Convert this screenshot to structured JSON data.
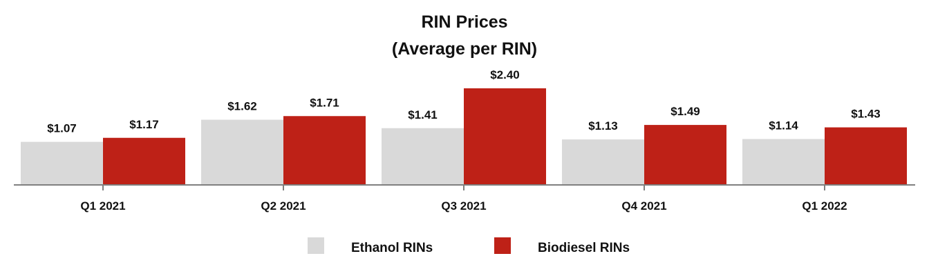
{
  "chart_data": {
    "type": "bar",
    "title": "RIN Prices",
    "subtitle": "(Average per RIN)",
    "categories": [
      "Q1 2021",
      "Q2 2021",
      "Q3 2021",
      "Q4 2021",
      "Q1 2022"
    ],
    "series": [
      {
        "name": "Ethanol RINs",
        "color": "#d9d9d9",
        "values": [
          1.07,
          1.62,
          1.41,
          1.13,
          1.14
        ],
        "labels": [
          "$1.07",
          "$1.62",
          "$1.41",
          "$1.13",
          "$1.14"
        ]
      },
      {
        "name": "Biodiesel RINs",
        "color": "#be2117",
        "values": [
          1.17,
          1.71,
          2.4,
          1.49,
          1.43
        ],
        "labels": [
          "$1.17",
          "$1.71",
          "$2.40",
          "$1.49",
          "$1.43"
        ]
      }
    ],
    "ylim": [
      0,
      2.4
    ],
    "grid": false,
    "legend_position": "bottom",
    "axis_color": "#7f7f7f"
  }
}
